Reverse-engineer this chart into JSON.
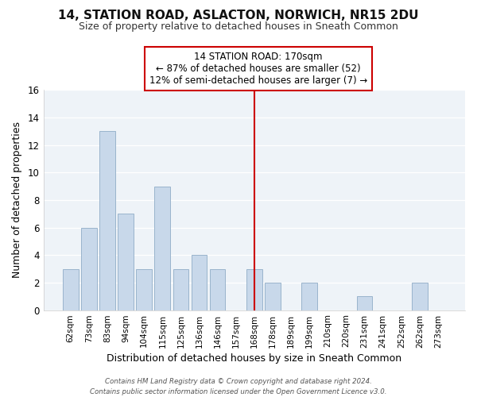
{
  "title": "14, STATION ROAD, ASLACTON, NORWICH, NR15 2DU",
  "subtitle": "Size of property relative to detached houses in Sneath Common",
  "xlabel": "Distribution of detached houses by size in Sneath Common",
  "ylabel": "Number of detached properties",
  "categories": [
    "62sqm",
    "73sqm",
    "83sqm",
    "94sqm",
    "104sqm",
    "115sqm",
    "125sqm",
    "136sqm",
    "146sqm",
    "157sqm",
    "168sqm",
    "178sqm",
    "189sqm",
    "199sqm",
    "210sqm",
    "220sqm",
    "231sqm",
    "241sqm",
    "252sqm",
    "262sqm",
    "273sqm"
  ],
  "values": [
    3,
    6,
    13,
    7,
    3,
    9,
    3,
    4,
    3,
    0,
    3,
    2,
    0,
    2,
    0,
    0,
    1,
    0,
    0,
    2,
    0
  ],
  "bar_color": "#c8d8ea",
  "bar_edge_color": "#9ab4cc",
  "highlight_index": 10,
  "highlight_line_color": "#cc0000",
  "ylim": [
    0,
    16
  ],
  "yticks": [
    0,
    2,
    4,
    6,
    8,
    10,
    12,
    14,
    16
  ],
  "annotation_title": "14 STATION ROAD: 170sqm",
  "annotation_line1": "← 87% of detached houses are smaller (52)",
  "annotation_line2": "12% of semi-detached houses are larger (7) →",
  "annotation_box_facecolor": "#ffffff",
  "annotation_box_edgecolor": "#cc0000",
  "footer_line1": "Contains HM Land Registry data © Crown copyright and database right 2024.",
  "footer_line2": "Contains public sector information licensed under the Open Government Licence v3.0.",
  "background_color": "#ffffff",
  "plot_bg_color": "#eef3f8",
  "grid_color": "#ffffff"
}
